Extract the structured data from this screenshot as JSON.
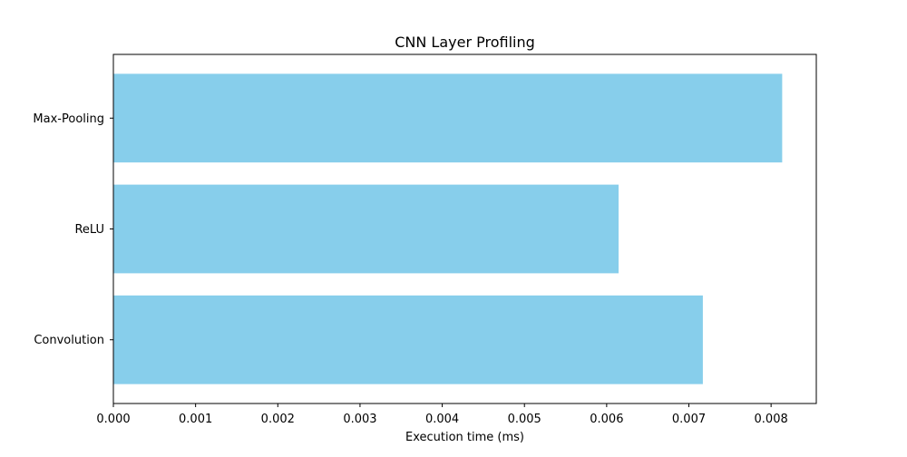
{
  "chart_data": {
    "type": "bar",
    "orientation": "horizontal",
    "title": "CNN Layer Profiling",
    "xlabel": "Execution time (ms)",
    "ylabel": "",
    "categories": [
      "Convolution",
      "ReLU",
      "Max-Pooling"
    ],
    "values": [
      0.00717,
      0.006145,
      0.008135
    ],
    "xlim": [
      0,
      0.00855
    ],
    "xticks": [
      "0.000",
      "0.001",
      "0.002",
      "0.003",
      "0.004",
      "0.005",
      "0.006",
      "0.007",
      "0.008"
    ],
    "grid": false,
    "legend": "none",
    "bar_color": "#87CEEB"
  }
}
